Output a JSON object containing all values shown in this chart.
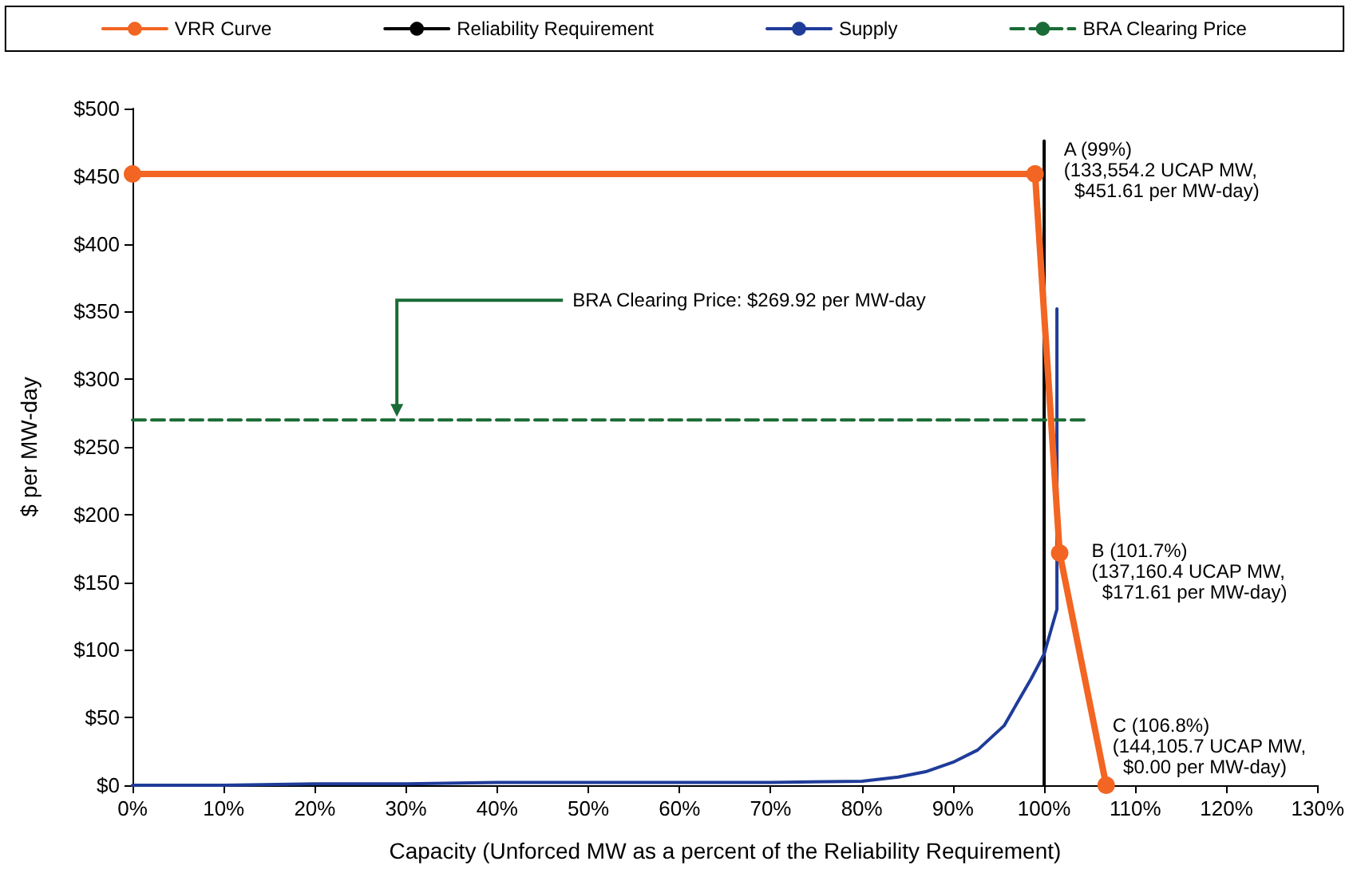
{
  "chart_data": {
    "type": "line",
    "xlabel": "Capacity (Unforced MW as a percent of the Reliability Requirement)",
    "ylabel": "$ per MW-day",
    "xlim": [
      0,
      130
    ],
    "xticks": [
      {
        "value": 0,
        "label": "0%"
      },
      {
        "value": 10,
        "label": "10%"
      },
      {
        "value": 20,
        "label": "20%"
      },
      {
        "value": 30,
        "label": "30%"
      },
      {
        "value": 40,
        "label": "40%"
      },
      {
        "value": 50,
        "label": "50%"
      },
      {
        "value": 60,
        "label": "60%"
      },
      {
        "value": 70,
        "label": "70%"
      },
      {
        "value": 80,
        "label": "80%"
      },
      {
        "value": 90,
        "label": "90%"
      },
      {
        "value": 100,
        "label": "100%"
      },
      {
        "value": 110,
        "label": "110%"
      },
      {
        "value": 120,
        "label": "120%"
      },
      {
        "value": 130,
        "label": "130%"
      }
    ],
    "ylim": [
      0,
      500
    ],
    "yticks": [
      {
        "value": 0,
        "label": "$0"
      },
      {
        "value": 50,
        "label": "$50"
      },
      {
        "value": 100,
        "label": "$100"
      },
      {
        "value": 150,
        "label": "$150"
      },
      {
        "value": 200,
        "label": "$200"
      },
      {
        "value": 250,
        "label": "$250"
      },
      {
        "value": 300,
        "label": "$300"
      },
      {
        "value": 350,
        "label": "$350"
      },
      {
        "value": 400,
        "label": "$400"
      },
      {
        "value": 450,
        "label": "$450"
      },
      {
        "value": 500,
        "label": "$500"
      }
    ],
    "grid": false,
    "legend": "top",
    "series": [
      {
        "name": "VRR Curve",
        "color": "#f26522",
        "marker": "circle",
        "x": [
          0,
          99,
          101.7,
          106.8
        ],
        "values": [
          451.61,
          451.61,
          171.61,
          0
        ]
      },
      {
        "name": "Reliability Requirement",
        "color": "#000000",
        "marker": "none",
        "x": [
          100,
          100
        ],
        "values": [
          0,
          476
        ]
      },
      {
        "name": "Supply",
        "color": "#1f3c99",
        "marker": "none",
        "x": [
          0,
          10,
          20,
          30,
          40,
          50,
          60,
          70,
          80,
          84,
          87,
          90,
          92.7,
          95.6,
          98.6,
          100,
          101.4,
          101.4
        ],
        "values": [
          0,
          0,
          1,
          1,
          2,
          2,
          2,
          2,
          3,
          6,
          10,
          17,
          26,
          44,
          79,
          97,
          130,
          352
        ]
      },
      {
        "name": "BRA Clearing Price",
        "color": "#1a6b35",
        "marker": "none",
        "line_style": "dashed",
        "x": [
          0,
          105
        ],
        "values": [
          269.92,
          269.92
        ]
      }
    ],
    "annotations": [
      {
        "text": "BRA Clearing Price: $269.92 per MW-day",
        "x": 29,
        "y": 269.92
      },
      {
        "text": "A (99%)\n(133,554.2 UCAP MW,\n  $451.61 per MW-day)",
        "x": 99,
        "y": 451.61
      },
      {
        "text": "B (101.7%)\n(137,160.4 UCAP MW,\n  $171.61 per MW-day)",
        "x": 101.7,
        "y": 171.61
      },
      {
        "text": "C (106.8%)\n(144,105.7 UCAP MW,\n  $0.00 per MW-day)",
        "x": 106.8,
        "y": 0
      }
    ]
  }
}
